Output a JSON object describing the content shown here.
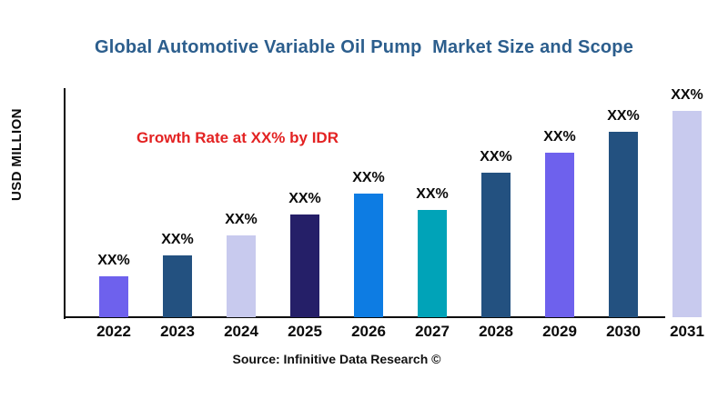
{
  "title": "Global Automotive Variable Oil Pump  Market Size and Scope",
  "annotation": "Growth Rate at XX% by IDR",
  "ylabel": "USD MILLION",
  "source": "Source: Infinitive Data Research ©",
  "colors": {
    "title_text": "#2c5e8d",
    "annotation_text": "#e32222",
    "axis": "#0a0a0a",
    "background": "#ffffff"
  },
  "chart_data": {
    "type": "bar",
    "title": "Global Automotive Variable Oil Pump  Market Size and Scope",
    "categories": [
      "2022",
      "2023",
      "2024",
      "2025",
      "2026",
      "2027",
      "2028",
      "2029",
      "2030",
      "2031"
    ],
    "values": [
      45,
      68,
      90,
      113,
      136,
      118,
      159,
      181,
      204,
      227
    ],
    "bar_labels": [
      "XX%",
      "XX%",
      "XX%",
      "XX%",
      "XX%",
      "XX%",
      "XX%",
      "XX%",
      "XX%",
      "XX%"
    ],
    "bar_colors": [
      "#6e61ed",
      "#235180",
      "#c8caee",
      "#251f68",
      "#0d7ce3",
      "#00a3b8",
      "#235180",
      "#6e61ed",
      "#235180",
      "#c8caee"
    ],
    "xlabel": "",
    "ylabel": "USD MILLION",
    "ylim": [
      0,
      253
    ],
    "grid": false,
    "legend": false,
    "annotation": "Growth Rate at XX% by IDR",
    "source": "Source: Infinitive Data Research ©"
  }
}
